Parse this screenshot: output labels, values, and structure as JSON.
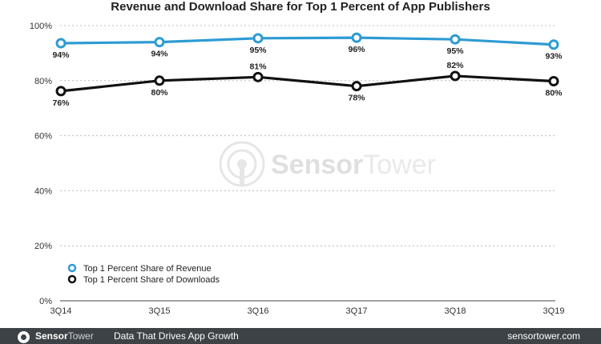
{
  "chart_data": {
    "type": "line",
    "title": "Revenue and Download Share for Top 1 Percent of App Publishers",
    "categories": [
      "3Q14",
      "3Q15",
      "3Q16",
      "3Q17",
      "3Q18",
      "3Q19"
    ],
    "ylim": [
      0,
      100
    ],
    "yticks": [
      0,
      20,
      40,
      60,
      80,
      100
    ],
    "ytick_labels": [
      "0%",
      "20%",
      "40%",
      "60%",
      "80%",
      "100%"
    ],
    "grid": "dashed horizontal",
    "legend_position": "bottom-left",
    "series": [
      {
        "name": "Top 1 Percent Share of Revenue",
        "color": "#2e9bd3",
        "values": [
          93.6,
          94.0,
          95.4,
          95.6,
          95.0,
          93.1
        ],
        "labels": [
          "94%",
          "94%",
          "95%",
          "96%",
          "95%",
          "93%"
        ],
        "label_position": [
          "below",
          "below",
          "below",
          "below",
          "below",
          "below"
        ]
      },
      {
        "name": "Top 1 Percent Share of Downloads",
        "color": "#111111",
        "values": [
          76.2,
          80.0,
          81.3,
          78.0,
          81.7,
          79.8
        ],
        "labels": [
          "76%",
          "80%",
          "81%",
          "78%",
          "82%",
          "80%"
        ],
        "label_position": [
          "below",
          "below",
          "above",
          "below",
          "above",
          "below"
        ]
      }
    ]
  },
  "watermark": {
    "brand_bold": "Sensor",
    "brand_light": "Tower"
  },
  "footer": {
    "brand_bold": "Sensor",
    "brand_light": "Tower",
    "tagline": "Data That Drives App Growth",
    "website": "sensortower.com",
    "background": "#3d4246"
  }
}
